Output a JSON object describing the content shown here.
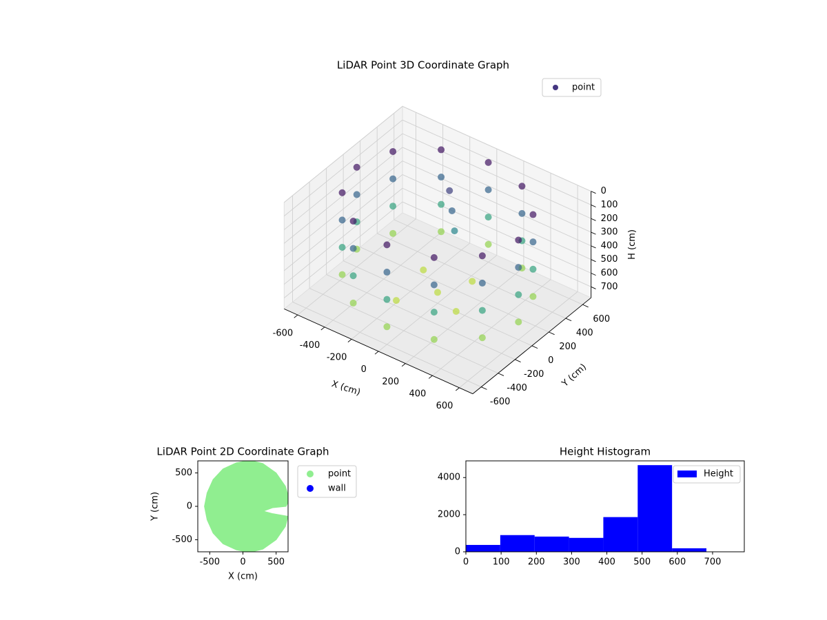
{
  "chart_data": [
    {
      "type": "scatter3d",
      "title": "LiDAR Point 3D Coordinate Graph",
      "xlabel": "X (cm)",
      "ylabel": "Y (cm)",
      "zlabel": "H (cm)",
      "xlim": [
        -700,
        700
      ],
      "ylim": [
        -700,
        700
      ],
      "zlim": [
        0,
        780
      ],
      "zinverted": true,
      "xticks": [
        -600,
        -400,
        -200,
        0,
        200,
        400,
        600
      ],
      "yticks": [
        -600,
        -400,
        -200,
        0,
        200,
        400,
        600
      ],
      "zticks": [
        0,
        100,
        200,
        300,
        400,
        500,
        600,
        700
      ],
      "colormap": "viridis",
      "legend": "upper right",
      "grid": true,
      "series": [
        {
          "name": "point",
          "color": "#453781",
          "x": [
            600,
            520,
            300,
            0,
            -300,
            -520,
            -600,
            -520,
            -300,
            0,
            300,
            520,
            600,
            520,
            300,
            0,
            -300,
            -520,
            -600,
            -520,
            -300,
            0,
            300,
            520,
            600,
            520,
            300,
            0,
            -300,
            -520,
            -600,
            -520,
            -300,
            0,
            300,
            520,
            600,
            520,
            300,
            0,
            -300,
            -520,
            -600,
            -520,
            -300,
            0,
            300,
            520,
            0,
            200,
            -200,
            100,
            -150,
            -100,
            -50,
            0
          ],
          "y": [
            0,
            300,
            520,
            600,
            520,
            300,
            0,
            -300,
            -520,
            -600,
            -520,
            -300,
            0,
            300,
            520,
            600,
            520,
            300,
            0,
            -300,
            -520,
            -600,
            -520,
            -300,
            0,
            300,
            520,
            600,
            520,
            300,
            0,
            -300,
            -520,
            -600,
            -520,
            -300,
            0,
            300,
            520,
            600,
            520,
            300,
            0,
            -300,
            -520,
            -600,
            -520,
            -300,
            0,
            -100,
            150,
            250,
            -250,
            300,
            250,
            200
          ],
          "z": [
            50,
            50,
            50,
            50,
            50,
            50,
            50,
            50,
            50,
            50,
            50,
            50,
            250,
            250,
            250,
            250,
            250,
            250,
            250,
            250,
            250,
            250,
            250,
            250,
            450,
            450,
            450,
            450,
            450,
            450,
            450,
            450,
            450,
            450,
            450,
            450,
            650,
            650,
            650,
            650,
            650,
            650,
            650,
            650,
            650,
            650,
            650,
            650,
            700,
            700,
            700,
            700,
            700,
            150,
            250,
            350
          ]
        }
      ]
    },
    {
      "type": "scatter",
      "title": "LiDAR Point 2D Coordinate Graph",
      "xlabel": "X (cm)",
      "ylabel": "Y (cm)",
      "xlim": [
        -680,
        680
      ],
      "ylim": [
        -680,
        680
      ],
      "xticks": [
        -500,
        0,
        500
      ],
      "yticks": [
        -500,
        0,
        500
      ],
      "legend": "outside right",
      "series": [
        {
          "name": "point",
          "color": "#90ee90",
          "x": [
            700,
            640,
            500,
            300,
            100,
            -100,
            -300,
            -450,
            -540,
            -580,
            -540,
            -450,
            -300,
            -100,
            100,
            300,
            500,
            640,
            680,
            450,
            306,
            450,
            650
          ],
          "y": [
            100,
            300,
            500,
            640,
            690,
            650,
            560,
            400,
            200,
            0,
            -200,
            -400,
            -560,
            -650,
            -690,
            -640,
            -500,
            -300,
            -150,
            -110,
            -72,
            -20,
            0
          ]
        },
        {
          "name": "wall",
          "color": "#0000ff",
          "x": [],
          "y": []
        }
      ]
    },
    {
      "type": "histogram",
      "title": "Height Histogram",
      "name": "Height",
      "color": "#0000ff",
      "bins": [
        0,
        97.5,
        195,
        292.5,
        390,
        487.5,
        585,
        682.5,
        780
      ],
      "values": [
        370,
        900,
        820,
        750,
        1870,
        4670,
        190,
        0
      ],
      "xlim": [
        0,
        790
      ],
      "ylim": [
        0,
        4900
      ],
      "xticks": [
        0,
        100,
        200,
        300,
        400,
        500,
        600,
        700
      ],
      "yticks": [
        0,
        2000,
        4000
      ],
      "legend": "upper right"
    }
  ]
}
